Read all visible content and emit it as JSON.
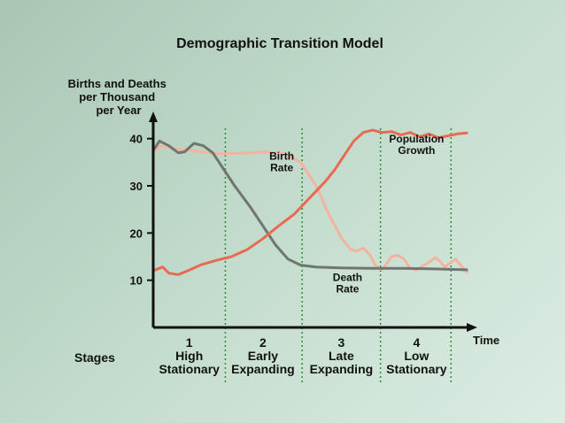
{
  "chart_data": {
    "type": "line",
    "title": "Demographic Transition Model",
    "ylabel_lines": [
      "Births and Deaths",
      "per Thousand",
      "per Year"
    ],
    "xlabel": "Time",
    "ylim": [
      0,
      45
    ],
    "xlim": [
      0,
      100
    ],
    "yticks": [
      {
        "value": 10,
        "label": "10"
      },
      {
        "value": 20,
        "label": "20"
      },
      {
        "value": 30,
        "label": "30"
      },
      {
        "value": 40,
        "label": "40"
      }
    ],
    "stage_boundaries": [
      23,
      47.5,
      72.5,
      95
    ],
    "stages_label": "Stages",
    "stages": [
      {
        "num": "1",
        "line1": "High",
        "line2": "Stationary",
        "x": 11.5
      },
      {
        "num": "2",
        "line1": "Early",
        "line2": "Expanding",
        "x": 35
      },
      {
        "num": "3",
        "line1": "Late",
        "line2": "Expanding",
        "x": 60
      },
      {
        "num": "4",
        "line1": "Low",
        "line2": "Stationary",
        "x": 84
      }
    ],
    "annotations": [
      {
        "key": "birth",
        "lines": [
          "Birth",
          "Rate"
        ],
        "x": 41,
        "y": 35.5
      },
      {
        "key": "death",
        "lines": [
          "Death",
          "Rate"
        ],
        "x": 62,
        "y": 9.8
      },
      {
        "key": "pop",
        "lines": [
          "Population",
          "Growth"
        ],
        "x": 84,
        "y": 39.2
      }
    ],
    "series": [
      {
        "key": "birth",
        "color": "#f3b39e",
        "points": [
          [
            0,
            37
          ],
          [
            2,
            38.5
          ],
          [
            6,
            38
          ],
          [
            12,
            37.5
          ],
          [
            18,
            37
          ],
          [
            23,
            36.8
          ],
          [
            30,
            37
          ],
          [
            36,
            37.2
          ],
          [
            42,
            36.8
          ],
          [
            47,
            35
          ],
          [
            52,
            30
          ],
          [
            56,
            24
          ],
          [
            60,
            19
          ],
          [
            63,
            16.5
          ],
          [
            65,
            16.2
          ],
          [
            67,
            16.8
          ],
          [
            69,
            15.5
          ],
          [
            71,
            13
          ],
          [
            73,
            12.2
          ],
          [
            74.5,
            13.5
          ],
          [
            76,
            15
          ],
          [
            78,
            15.3
          ],
          [
            80,
            14.5
          ],
          [
            82,
            12.5
          ],
          [
            84,
            12.2
          ],
          [
            86,
            13
          ],
          [
            88,
            13.8
          ],
          [
            90,
            14.8
          ],
          [
            91.5,
            14
          ],
          [
            93,
            12.8
          ],
          [
            95,
            13.8
          ],
          [
            96.5,
            14.5
          ],
          [
            98,
            13.2
          ],
          [
            100,
            11.8
          ]
        ]
      },
      {
        "key": "death",
        "color": "#6f756f",
        "points": [
          [
            0,
            37.5
          ],
          [
            2,
            39.5
          ],
          [
            5,
            38.5
          ],
          [
            8,
            37
          ],
          [
            10,
            37.2
          ],
          [
            13,
            39
          ],
          [
            16,
            38.5
          ],
          [
            19,
            37
          ],
          [
            22,
            34
          ],
          [
            26,
            30
          ],
          [
            31,
            25.5
          ],
          [
            35,
            21.5
          ],
          [
            39,
            17.5
          ],
          [
            43,
            14.5
          ],
          [
            47,
            13.2
          ],
          [
            52,
            12.8
          ],
          [
            60,
            12.6
          ],
          [
            70,
            12.5
          ],
          [
            80,
            12.5
          ],
          [
            90,
            12.4
          ],
          [
            100,
            12.2
          ]
        ]
      },
      {
        "key": "pop",
        "color": "#e86a52",
        "points": [
          [
            0,
            12
          ],
          [
            3,
            12.8
          ],
          [
            5,
            11.5
          ],
          [
            8,
            11.2
          ],
          [
            11,
            12
          ],
          [
            15,
            13.2
          ],
          [
            20,
            14.2
          ],
          [
            25,
            15
          ],
          [
            30,
            16.5
          ],
          [
            35,
            18.8
          ],
          [
            40,
            21.5
          ],
          [
            45,
            24
          ],
          [
            50,
            27.5
          ],
          [
            55,
            31
          ],
          [
            58,
            33.5
          ],
          [
            61,
            36.5
          ],
          [
            64,
            39.5
          ],
          [
            67,
            41.3
          ],
          [
            70,
            41.8
          ],
          [
            73,
            41.3
          ],
          [
            76,
            41.5
          ],
          [
            79,
            40.8
          ],
          [
            82,
            41.3
          ],
          [
            85,
            40.4
          ],
          [
            88,
            41
          ],
          [
            91,
            40.2
          ],
          [
            94,
            40.6
          ],
          [
            97,
            41
          ],
          [
            100,
            41.2
          ]
        ]
      }
    ]
  }
}
